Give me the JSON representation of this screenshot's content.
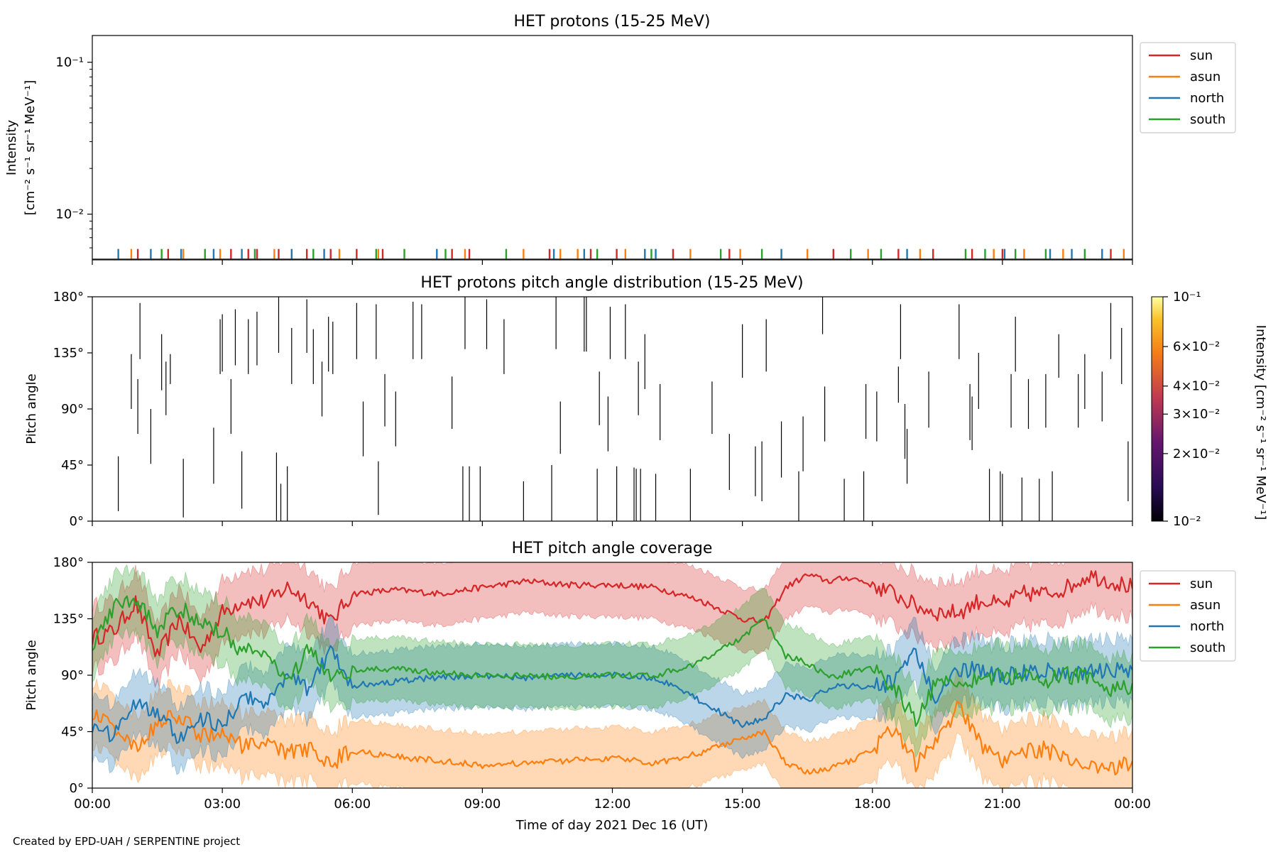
{
  "figure": {
    "credit": "Created by EPD-UAH / SERPENTINE project",
    "xlabel": "Time of day 2021 Dec 16 (UT)"
  },
  "colors": {
    "sun": "#d62728",
    "asun": "#ff7f0e",
    "north": "#1f77b4",
    "south": "#2ca02c"
  },
  "chart_data": [
    {
      "type": "line",
      "title": "HET protons (15-25 MeV)",
      "ylabel_line1": "Intensity",
      "ylabel_line2": "[cm⁻² s⁻¹ sr⁻¹ MeV⁻¹]",
      "yscale": "log",
      "ylim": [
        0.005,
        0.15
      ],
      "ytick_labels": [
        "10⁻¹",
        "10⁻²"
      ],
      "xlim_hours": [
        0,
        24
      ],
      "xtick_labels": [
        "00:00",
        "03:00",
        "06:00",
        "09:00",
        "12:00",
        "15:00",
        "18:00",
        "21:00",
        "00:00"
      ],
      "legend": {
        "placement": "outside-right",
        "entries": [
          "sun",
          "asun",
          "north",
          "south"
        ]
      },
      "note": "Only isolated single-count spikes near the bottom of the axis (~0.0057)",
      "series": [
        {
          "name": "sun",
          "spike_hours": [
            1.05,
            1.75,
            3.2,
            3.6,
            3.8,
            4.3,
            4.95,
            5.5,
            6.1,
            6.7,
            8.3,
            8.7,
            10.55,
            11.5,
            12.1,
            13.4,
            14.7,
            17.1,
            18.6,
            19.4,
            20.3,
            21.0,
            23.5
          ]
        },
        {
          "name": "asun",
          "spike_hours": [
            0.9,
            2.1,
            2.95,
            4.2,
            5.7,
            6.6,
            8.6,
            9.95,
            10.8,
            11.2,
            12.3,
            13.8,
            14.95,
            16.5,
            17.9,
            19.1,
            20.8,
            21.5,
            22.4,
            23.8
          ]
        },
        {
          "name": "north",
          "spike_hours": [
            0.6,
            1.35,
            2.05,
            2.8,
            3.45,
            4.6,
            5.35,
            7.95,
            10.65,
            11.35,
            12.75,
            13.0,
            15.9,
            18.8,
            21.05,
            22.1,
            22.6,
            23.3
          ]
        },
        {
          "name": "south",
          "spike_hours": [
            1.6,
            2.6,
            3.75,
            5.1,
            6.55,
            7.2,
            8.15,
            9.55,
            11.65,
            12.9,
            14.5,
            15.45,
            17.5,
            18.2,
            20.15,
            20.6,
            21.3,
            22.0,
            22.9
          ]
        }
      ]
    },
    {
      "type": "heatmap",
      "title": "HET protons pitch angle distribution (15-25 MeV)",
      "ylabel": "Pitch angle",
      "ylim_deg": [
        0,
        180
      ],
      "ytick_labels": [
        "180°",
        "135°",
        "90°",
        "45°",
        "0°"
      ],
      "colorbar": {
        "label": "Intensity [cm⁻² s⁻¹ sr⁻¹ MeV⁻¹]",
        "scale": "log",
        "range": [
          0.01,
          0.1
        ],
        "tick_labels": [
          "10⁻¹",
          "6×10⁻²",
          "4×10⁻²",
          "3×10⁻²",
          "2×10⁻²",
          "10⁻²"
        ]
      },
      "segments_note": "each segment = [hour, pitch_low_deg, pitch_high_deg]",
      "segments": [
        [
          0.6,
          8,
          52
        ],
        [
          0.9,
          90,
          134
        ],
        [
          1.05,
          70,
          114
        ],
        [
          1.1,
          130,
          175
        ],
        [
          1.35,
          46,
          90
        ],
        [
          1.6,
          105,
          150
        ],
        [
          1.7,
          85,
          128
        ],
        [
          1.8,
          110,
          134
        ],
        [
          2.1,
          3,
          50
        ],
        [
          2.8,
          30,
          75
        ],
        [
          2.95,
          118,
          162
        ],
        [
          3.0,
          120,
          166
        ],
        [
          3.2,
          70,
          114
        ],
        [
          3.3,
          125,
          170
        ],
        [
          3.45,
          10,
          56
        ],
        [
          3.6,
          118,
          162
        ],
        [
          3.8,
          125,
          168
        ],
        [
          4.25,
          0,
          55
        ],
        [
          4.3,
          135,
          180
        ],
        [
          4.35,
          0,
          30
        ],
        [
          4.5,
          0,
          44
        ],
        [
          4.6,
          110,
          155
        ],
        [
          4.95,
          135,
          178
        ],
        [
          5.1,
          110,
          154
        ],
        [
          5.3,
          84,
          128
        ],
        [
          5.45,
          120,
          164
        ],
        [
          5.55,
          118,
          160
        ],
        [
          6.1,
          130,
          175
        ],
        [
          6.25,
          52,
          96
        ],
        [
          6.55,
          130,
          174
        ],
        [
          6.6,
          5,
          48
        ],
        [
          6.75,
          76,
          118
        ],
        [
          7.0,
          60,
          104
        ],
        [
          7.4,
          130,
          176
        ],
        [
          7.6,
          130,
          174
        ],
        [
          8.3,
          74,
          116
        ],
        [
          8.55,
          0,
          44
        ],
        [
          8.6,
          138,
          180
        ],
        [
          8.7,
          0,
          44
        ],
        [
          8.95,
          0,
          44
        ],
        [
          9.1,
          138,
          178
        ],
        [
          9.5,
          118,
          162
        ],
        [
          9.95,
          0,
          32
        ],
        [
          10.6,
          0,
          45
        ],
        [
          10.7,
          138,
          180
        ],
        [
          10.8,
          54,
          96
        ],
        [
          11.35,
          136,
          180
        ],
        [
          11.4,
          136,
          180
        ],
        [
          11.65,
          0,
          42
        ],
        [
          11.7,
          77,
          120
        ],
        [
          11.9,
          56,
          100
        ],
        [
          11.95,
          130,
          172
        ],
        [
          12.1,
          0,
          44
        ],
        [
          12.3,
          130,
          174
        ],
        [
          12.5,
          0,
          43
        ],
        [
          12.55,
          0,
          42
        ],
        [
          12.6,
          85,
          128
        ],
        [
          12.65,
          0,
          42
        ],
        [
          12.75,
          106,
          150
        ],
        [
          13.0,
          0,
          38
        ],
        [
          13.1,
          65,
          110
        ],
        [
          13.8,
          0,
          42
        ],
        [
          14.3,
          70,
          112
        ],
        [
          14.7,
          25,
          70
        ],
        [
          15.0,
          115,
          158
        ],
        [
          15.3,
          20,
          60
        ],
        [
          15.45,
          16,
          64
        ],
        [
          15.55,
          120,
          162
        ],
        [
          15.9,
          35,
          80
        ],
        [
          16.3,
          0,
          40
        ],
        [
          16.4,
          40,
          84
        ],
        [
          16.85,
          150,
          180
        ],
        [
          16.9,
          64,
          108
        ],
        [
          17.35,
          0,
          34
        ],
        [
          17.8,
          0,
          40
        ],
        [
          17.85,
          66,
          110
        ],
        [
          18.1,
          64,
          104
        ],
        [
          18.6,
          95,
          124
        ],
        [
          18.65,
          130,
          174
        ],
        [
          18.75,
          50,
          94
        ],
        [
          18.8,
          30,
          74
        ],
        [
          19.3,
          75,
          120
        ],
        [
          20.0,
          130,
          174
        ],
        [
          20.25,
          65,
          110
        ],
        [
          20.3,
          57,
          100
        ],
        [
          20.45,
          90,
          135
        ],
        [
          20.7,
          0,
          42
        ],
        [
          20.95,
          0,
          40
        ],
        [
          21.0,
          0,
          38
        ],
        [
          21.2,
          75,
          118
        ],
        [
          21.3,
          120,
          164
        ],
        [
          21.45,
          0,
          35
        ],
        [
          21.6,
          74,
          114
        ],
        [
          21.85,
          0,
          34
        ],
        [
          22.0,
          75,
          118
        ],
        [
          22.15,
          0,
          40
        ],
        [
          22.3,
          115,
          150
        ],
        [
          22.75,
          75,
          118
        ],
        [
          22.9,
          90,
          134
        ],
        [
          23.3,
          80,
          120
        ],
        [
          23.5,
          130,
          175
        ],
        [
          23.75,
          110,
          155
        ],
        [
          23.9,
          16,
          64
        ]
      ]
    },
    {
      "type": "area",
      "title": "HET pitch angle coverage",
      "ylabel": "Pitch angle",
      "ylim_deg": [
        0,
        180
      ],
      "ytick_labels": [
        "180°",
        "135°",
        "90°",
        "45°",
        "0°"
      ],
      "xlim_hours": [
        0,
        24
      ],
      "band_halfwidth_deg": 25,
      "legend": {
        "placement": "outside-right",
        "entries": [
          "sun",
          "asun",
          "north",
          "south"
        ]
      },
      "x": [
        0,
        0.5,
        1,
        1.5,
        2,
        2.5,
        3,
        3.5,
        4,
        4.5,
        5,
        5.5,
        6,
        7,
        8,
        9,
        10,
        11,
        12,
        13,
        14,
        15,
        15.5,
        16,
        16.5,
        17,
        17.5,
        18,
        18.5,
        19,
        19.5,
        20,
        20.5,
        21,
        21.5,
        22,
        22.5,
        23,
        23.5,
        24
      ],
      "series": [
        {
          "name": "sun",
          "values": [
            120,
            125,
            148,
            105,
            135,
            110,
            140,
            150,
            148,
            160,
            150,
            132,
            155,
            158,
            155,
            160,
            165,
            162,
            162,
            160,
            150,
            135,
            132,
            160,
            170,
            165,
            168,
            162,
            155,
            145,
            140,
            140,
            150,
            145,
            155,
            155,
            160,
            170,
            165,
            160
          ]
        },
        {
          "name": "asun",
          "values": [
            60,
            50,
            30,
            52,
            58,
            42,
            45,
            32,
            35,
            28,
            32,
            20,
            30,
            25,
            22,
            18,
            20,
            22,
            24,
            20,
            28,
            40,
            45,
            20,
            12,
            15,
            22,
            30,
            50,
            20,
            40,
            65,
            35,
            20,
            28,
            32,
            20,
            18,
            15,
            20
          ]
        },
        {
          "name": "north",
          "values": [
            50,
            40,
            70,
            60,
            40,
            55,
            50,
            72,
            70,
            88,
            80,
            110,
            82,
            85,
            88,
            90,
            88,
            90,
            90,
            88,
            70,
            50,
            55,
            75,
            70,
            80,
            82,
            80,
            85,
            110,
            70,
            95,
            95,
            88,
            92,
            95,
            88,
            95,
            92,
            95
          ]
        },
        {
          "name": "south",
          "values": [
            115,
            145,
            152,
            125,
            145,
            130,
            125,
            108,
            110,
            85,
            110,
            90,
            95,
            95,
            92,
            90,
            90,
            88,
            90,
            90,
            100,
            120,
            135,
            105,
            100,
            88,
            92,
            95,
            80,
            55,
            85,
            85,
            88,
            88,
            90,
            85,
            90,
            88,
            80,
            82
          ]
        }
      ]
    }
  ]
}
